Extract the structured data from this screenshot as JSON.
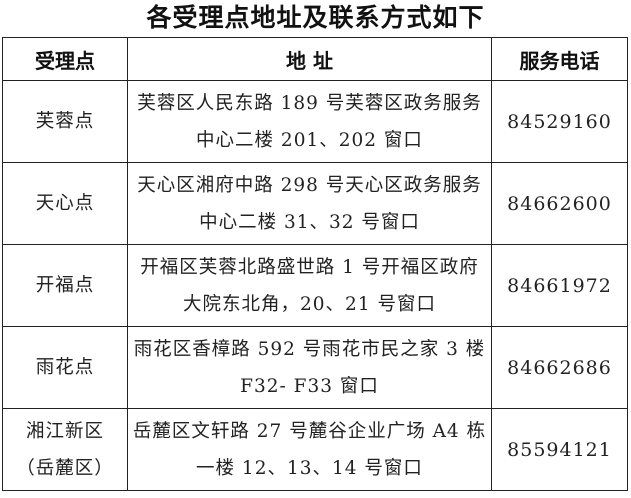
{
  "title": "各受理点地址及联系方式如下",
  "headers": [
    "受理点",
    "地 址",
    "服务电话"
  ],
  "rows": [
    {
      "name": [
        "芙蓉点"
      ],
      "address": [
        "芙蓉区人民东路 189 号芙蓉区政务服务",
        "中心二楼 201、202 窗口"
      ],
      "phone": "84529160"
    },
    {
      "name": [
        "天心点"
      ],
      "address": [
        "天心区湘府中路 298 号天心区政务服务",
        "中心二楼 31、32 号窗口"
      ],
      "phone": "84662600"
    },
    {
      "name": [
        "开福点"
      ],
      "address": [
        "开福区芙蓉北路盛世路 1 号开福区政府",
        "大院东北角，20、21 号窗口"
      ],
      "phone": "84661972"
    },
    {
      "name": [
        "雨花点"
      ],
      "address": [
        "雨花区香樟路 592 号雨花市民之家 3 楼",
        "F32- F33 窗口"
      ],
      "phone": "84662686"
    },
    {
      "name": [
        "湘江新区",
        "（岳麓区）"
      ],
      "address": [
        "岳麓区文轩路 27 号麓谷企业广场 A4 栋",
        "一楼 12、13、14 号窗口"
      ],
      "phone": "85594121"
    }
  ]
}
